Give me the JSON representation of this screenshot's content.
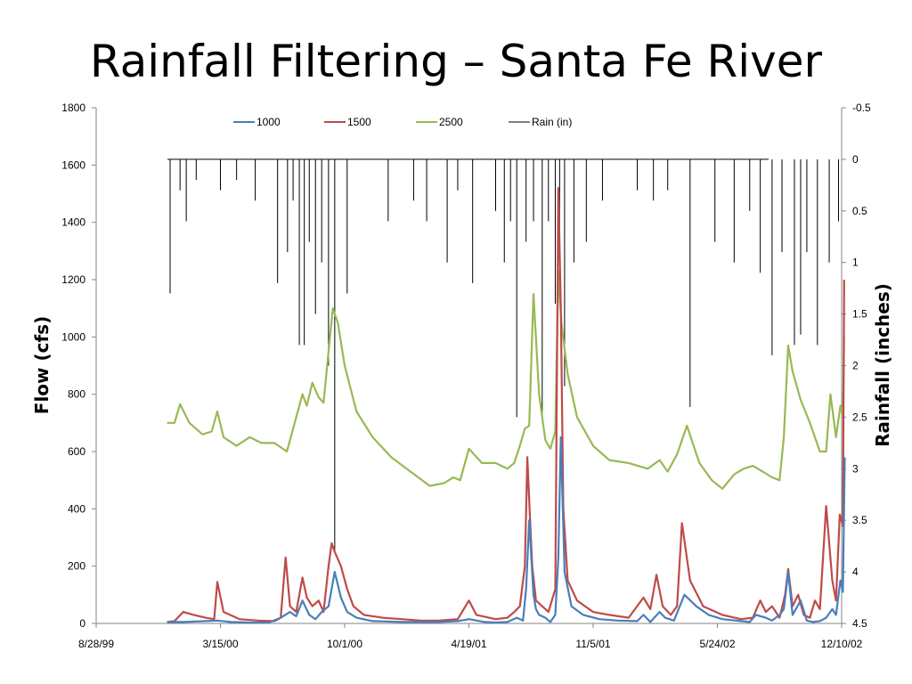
{
  "slide": {
    "title": "Rainfall Filtering – Santa Fe River"
  },
  "chart_data": {
    "type": "line",
    "title": "",
    "ylabel": "Flow (cfs)",
    "y2label": "Rainfall (inches)",
    "xlabel": "",
    "x_tick_labels": [
      "8/28/99",
      "3/15/00",
      "10/1/00",
      "4/19/01",
      "11/5/01",
      "5/24/02",
      "12/10/02"
    ],
    "y_ticks": [
      0,
      200,
      400,
      600,
      800,
      1000,
      1200,
      1400,
      1600,
      1800
    ],
    "y2_ticks": [
      -0.5,
      0,
      0.5,
      1,
      1.5,
      2,
      2.5,
      3,
      3.5,
      4,
      4.5
    ],
    "ylim": [
      0,
      1800
    ],
    "y2lim": [
      -0.5,
      4.5
    ],
    "y2_inverted": true,
    "legend_position": "top",
    "colors": {
      "s1000": "#4a7ebb",
      "s1500": "#be4b48",
      "s2500": "#98b954",
      "rain": "#000000"
    },
    "series": [
      {
        "name": "1000",
        "axis": "left",
        "x": [
          "1999-12-20",
          "2000-01-15",
          "2000-02-20",
          "2000-03-10",
          "2000-04-01",
          "2000-05-01",
          "2000-06-01",
          "2000-06-20",
          "2000-07-05",
          "2000-07-15",
          "2000-07-25",
          "2000-08-05",
          "2000-08-15",
          "2000-08-25",
          "2000-09-05",
          "2000-09-15",
          "2000-09-25",
          "2000-10-05",
          "2000-10-20",
          "2000-11-15",
          "2001-01-01",
          "2001-02-01",
          "2001-03-01",
          "2001-04-01",
          "2001-04-19",
          "2001-05-15",
          "2001-06-01",
          "2001-06-20",
          "2001-07-05",
          "2001-07-15",
          "2001-07-20",
          "2001-07-25",
          "2001-08-01",
          "2001-08-05",
          "2001-08-10",
          "2001-08-20",
          "2001-08-28",
          "2001-09-05",
          "2001-09-10",
          "2001-09-14",
          "2001-09-20",
          "2001-10-01",
          "2001-10-20",
          "2001-11-15",
          "2001-12-15",
          "2002-01-15",
          "2002-01-25",
          "2002-02-05",
          "2002-02-20",
          "2002-03-01",
          "2002-03-15",
          "2002-04-01",
          "2002-04-20",
          "2002-05-10",
          "2002-06-01",
          "2002-07-01",
          "2002-07-15",
          "2002-07-25",
          "2002-08-10",
          "2002-08-20",
          "2002-09-01",
          "2002-09-08",
          "2002-09-15",
          "2002-09-22",
          "2002-10-05",
          "2002-10-15",
          "2002-10-25",
          "2002-11-05",
          "2002-11-15",
          "2002-11-25",
          "2002-12-01",
          "2002-12-08",
          "2002-12-12",
          "2002-12-15"
        ],
        "values": [
          5,
          5,
          8,
          10,
          5,
          3,
          3,
          20,
          40,
          25,
          80,
          30,
          15,
          40,
          60,
          180,
          90,
          40,
          20,
          8,
          5,
          5,
          5,
          8,
          15,
          5,
          3,
          5,
          20,
          10,
          120,
          360,
          100,
          50,
          30,
          20,
          5,
          30,
          230,
          650,
          180,
          60,
          30,
          15,
          10,
          8,
          30,
          5,
          40,
          20,
          10,
          100,
          60,
          30,
          15,
          8,
          5,
          30,
          20,
          10,
          30,
          50,
          180,
          30,
          80,
          10,
          5,
          8,
          20,
          50,
          30,
          150,
          110,
          580
        ]
      },
      {
        "name": "1500",
        "axis": "left",
        "x": [
          "1999-12-20",
          "2000-01-01",
          "2000-01-15",
          "2000-02-01",
          "2000-02-20",
          "2000-03-05",
          "2000-03-10",
          "2000-03-20",
          "2000-04-15",
          "2000-05-15",
          "2000-06-10",
          "2000-06-20",
          "2000-06-28",
          "2000-07-05",
          "2000-07-15",
          "2000-07-25",
          "2000-08-01",
          "2000-08-10",
          "2000-08-20",
          "2000-08-28",
          "2000-09-05",
          "2000-09-10",
          "2000-09-15",
          "2000-09-25",
          "2000-10-05",
          "2000-10-15",
          "2000-11-01",
          "2000-12-01",
          "2001-01-01",
          "2001-02-01",
          "2001-03-01",
          "2001-04-01",
          "2001-04-19",
          "2001-05-01",
          "2001-06-01",
          "2001-06-20",
          "2001-07-01",
          "2001-07-10",
          "2001-07-18",
          "2001-07-22",
          "2001-07-26",
          "2001-07-30",
          "2001-08-05",
          "2001-08-15",
          "2001-08-25",
          "2001-09-05",
          "2001-09-10",
          "2001-09-14",
          "2001-09-18",
          "2001-09-25",
          "2001-10-10",
          "2001-11-05",
          "2001-12-01",
          "2002-01-01",
          "2002-01-25",
          "2002-02-05",
          "2002-02-15",
          "2002-02-25",
          "2002-03-10",
          "2002-03-20",
          "2002-03-28",
          "2002-04-10",
          "2002-05-01",
          "2002-06-01",
          "2002-07-01",
          "2002-07-20",
          "2002-08-01",
          "2002-08-10",
          "2002-08-20",
          "2002-09-01",
          "2002-09-10",
          "2002-09-15",
          "2002-09-22",
          "2002-10-01",
          "2002-10-10",
          "2002-10-20",
          "2002-10-28",
          "2002-11-05",
          "2002-11-15",
          "2002-11-25",
          "2002-12-01",
          "2002-12-07",
          "2002-12-12",
          "2002-12-14"
        ],
        "values": [
          5,
          8,
          40,
          30,
          20,
          15,
          145,
          40,
          15,
          10,
          8,
          20,
          230,
          60,
          40,
          160,
          90,
          60,
          80,
          40,
          200,
          280,
          250,
          200,
          120,
          60,
          30,
          20,
          15,
          10,
          10,
          15,
          80,
          30,
          15,
          20,
          40,
          60,
          200,
          580,
          380,
          200,
          80,
          60,
          40,
          120,
          1520,
          1100,
          400,
          150,
          80,
          40,
          30,
          20,
          90,
          50,
          170,
          60,
          30,
          60,
          350,
          150,
          60,
          30,
          15,
          20,
          80,
          40,
          60,
          20,
          100,
          190,
          60,
          100,
          30,
          20,
          80,
          50,
          410,
          150,
          80,
          380,
          340,
          1200
        ]
      },
      {
        "name": "2500",
        "axis": "left",
        "x": [
          "1999-12-20",
          "2000-01-01",
          "2000-01-10",
          "2000-01-25",
          "2000-02-15",
          "2000-03-01",
          "2000-03-10",
          "2000-03-20",
          "2000-04-10",
          "2000-05-01",
          "2000-05-20",
          "2000-06-10",
          "2000-06-30",
          "2000-07-15",
          "2000-07-25",
          "2000-08-01",
          "2000-08-10",
          "2000-08-20",
          "2000-08-28",
          "2000-09-05",
          "2000-09-12",
          "2000-09-20",
          "2000-10-01",
          "2000-10-20",
          "2000-11-15",
          "2000-12-15",
          "2001-01-15",
          "2001-02-15",
          "2001-03-10",
          "2001-03-25",
          "2001-04-05",
          "2001-04-19",
          "2001-05-10",
          "2001-06-01",
          "2001-06-20",
          "2001-07-01",
          "2001-07-10",
          "2001-07-18",
          "2001-07-25",
          "2001-08-01",
          "2001-08-10",
          "2001-08-20",
          "2001-08-28",
          "2001-09-05",
          "2001-09-10",
          "2001-09-15",
          "2001-09-25",
          "2001-10-10",
          "2001-11-05",
          "2001-12-01",
          "2002-01-01",
          "2002-02-01",
          "2002-02-20",
          "2002-03-05",
          "2002-03-20",
          "2002-04-05",
          "2002-04-25",
          "2002-05-15",
          "2002-06-01",
          "2002-06-20",
          "2002-07-05",
          "2002-07-20",
          "2002-08-05",
          "2002-08-20",
          "2002-09-01",
          "2002-09-08",
          "2002-09-15",
          "2002-09-22",
          "2002-10-05",
          "2002-10-20",
          "2002-11-05",
          "2002-11-15",
          "2002-11-22",
          "2002-12-01",
          "2002-12-08",
          "2002-12-12",
          "2002-12-14"
        ],
        "values": [
          700,
          700,
          765,
          700,
          660,
          670,
          740,
          650,
          620,
          650,
          630,
          630,
          600,
          720,
          800,
          760,
          840,
          790,
          770,
          950,
          1100,
          1050,
          900,
          740,
          650,
          580,
          530,
          480,
          490,
          510,
          500,
          610,
          560,
          560,
          540,
          560,
          620,
          680,
          690,
          1150,
          800,
          640,
          610,
          670,
          1230,
          1050,
          870,
          720,
          620,
          570,
          560,
          540,
          570,
          530,
          590,
          690,
          560,
          500,
          470,
          520,
          540,
          550,
          530,
          510,
          500,
          650,
          970,
          880,
          780,
          700,
          600,
          600,
          800,
          650,
          760,
          720,
          1000
        ]
      },
      {
        "name": "Rain (in)",
        "axis": "right",
        "x": [
          "1999-12-25",
          "2000-01-10",
          "2000-01-20",
          "2000-02-05",
          "2000-03-15",
          "2000-04-10",
          "2000-05-10",
          "2000-06-15",
          "2000-07-01",
          "2000-07-10",
          "2000-07-20",
          "2000-07-28",
          "2000-08-05",
          "2000-08-15",
          "2000-08-25",
          "2000-09-05",
          "2000-09-15",
          "2000-10-05",
          "2000-12-10",
          "2001-01-20",
          "2001-02-10",
          "2001-03-15",
          "2001-04-01",
          "2001-04-25",
          "2001-06-01",
          "2001-06-15",
          "2001-06-25",
          "2001-07-05",
          "2001-07-20",
          "2001-08-01",
          "2001-08-15",
          "2001-08-25",
          "2001-09-05",
          "2001-09-12",
          "2001-09-20",
          "2001-10-05",
          "2001-10-25",
          "2001-11-20",
          "2002-01-15",
          "2002-02-10",
          "2002-03-05",
          "2002-04-10",
          "2002-05-20",
          "2002-06-20",
          "2002-07-15",
          "2002-08-01",
          "2002-08-20",
          "2002-09-05",
          "2002-09-25",
          "2002-10-05",
          "2002-10-15",
          "2002-11-01",
          "2002-11-20",
          "2002-12-05"
        ],
        "values": [
          1.3,
          0.3,
          0.6,
          0.2,
          0.3,
          0.2,
          0.4,
          1.2,
          0.9,
          0.4,
          1.8,
          1.8,
          0.8,
          1.5,
          1.0,
          2.0,
          3.8,
          1.3,
          0.6,
          0.4,
          0.6,
          1.0,
          0.3,
          1.2,
          0.5,
          1.0,
          0.6,
          2.5,
          0.8,
          0.6,
          2.5,
          0.6,
          1.4,
          1.0,
          2.2,
          1.0,
          0.8,
          0.4,
          0.3,
          0.4,
          0.3,
          2.4,
          0.8,
          1.0,
          0.5,
          1.1,
          1.9,
          0.9,
          1.8,
          1.7,
          0.9,
          1.8,
          1.0,
          0.6
        ]
      }
    ]
  }
}
